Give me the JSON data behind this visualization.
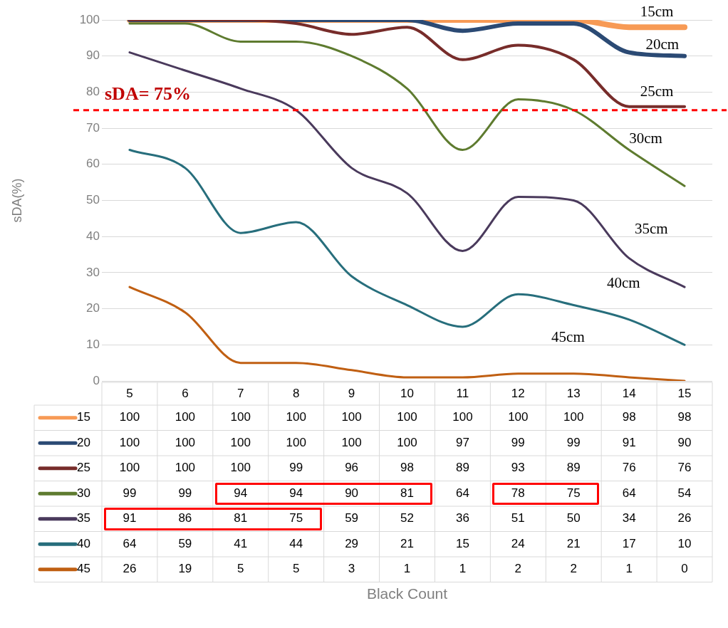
{
  "chart_data": {
    "type": "line",
    "ylabel": "sDA(%)",
    "categories": [
      "5",
      "6",
      "7",
      "8",
      "9",
      "10",
      "11",
      "12",
      "13",
      "14",
      "15"
    ],
    "series": [
      {
        "name": "15",
        "color": "#f79a55",
        "values": [
          100,
          100,
          100,
          100,
          100,
          100,
          100,
          100,
          100,
          98,
          98
        ]
      },
      {
        "name": "20",
        "color": "#2b4a74",
        "values": [
          100,
          100,
          100,
          100,
          100,
          100,
          97,
          99,
          99,
          91,
          90
        ]
      },
      {
        "name": "25",
        "color": "#772c2a",
        "values": [
          100,
          100,
          100,
          99,
          96,
          98,
          89,
          93,
          89,
          76,
          76
        ]
      },
      {
        "name": "30",
        "color": "#5e7b2f",
        "values": [
          99,
          99,
          94,
          94,
          90,
          81,
          64,
          78,
          75,
          64,
          54
        ]
      },
      {
        "name": "35",
        "color": "#4a3a5c",
        "values": [
          91,
          86,
          81,
          75,
          59,
          52,
          36,
          51,
          50,
          34,
          26
        ]
      },
      {
        "name": "40",
        "color": "#276e7c",
        "values": [
          64,
          59,
          41,
          44,
          29,
          21,
          15,
          24,
          21,
          17,
          10
        ]
      },
      {
        "name": "45",
        "color": "#c05f12",
        "values": [
          26,
          19,
          5,
          5,
          3,
          1,
          1,
          2,
          2,
          1,
          0
        ]
      }
    ],
    "ylim": [
      0,
      100
    ],
    "yticks": [
      0,
      10,
      20,
      30,
      40,
      50,
      60,
      70,
      80,
      90,
      100
    ],
    "grid": "y",
    "legend": "bottom left",
    "data_labels": true,
    "ref_lines": [
      {
        "axis": "y",
        "value": 75,
        "label": "sDA= 75%",
        "color": "#ff0000",
        "line_style": "dashed"
      }
    ],
    "annotations": [
      "15cm",
      "20cm",
      "25cm",
      "30cm",
      "35cm",
      "40cm",
      "45cm",
      "Black Count"
    ]
  }
}
